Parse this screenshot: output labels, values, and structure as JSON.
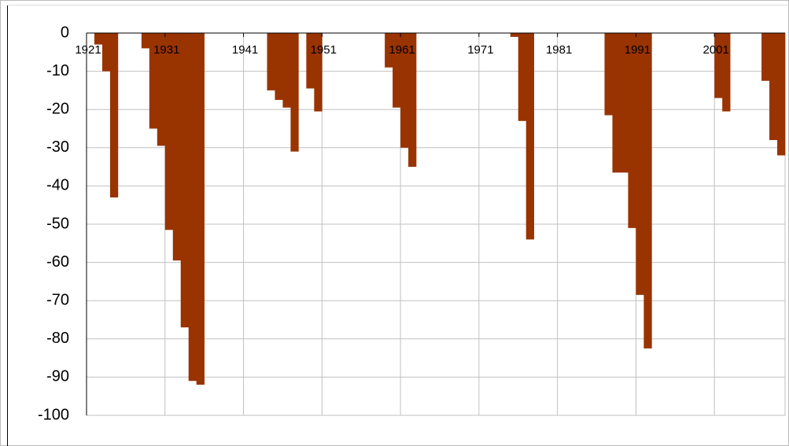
{
  "chart_data": {
    "type": "bar",
    "categories": [
      "1921",
      null,
      null,
      null,
      null,
      null,
      null,
      null,
      null,
      null,
      "1931",
      null,
      null,
      null,
      null,
      null,
      null,
      null,
      null,
      null,
      "1941",
      null,
      null,
      null,
      null,
      null,
      null,
      null,
      null,
      null,
      "1951",
      null,
      null,
      null,
      null,
      null,
      null,
      null,
      null,
      null,
      "1961",
      null,
      null,
      null,
      null,
      null,
      null,
      null,
      null,
      null,
      "1971",
      null,
      null,
      null,
      null,
      null,
      null,
      null,
      null,
      null,
      "1981",
      null,
      null,
      null,
      null,
      null,
      null,
      null,
      null,
      null,
      "1991",
      null,
      null,
      null,
      null,
      null,
      null,
      null,
      null,
      null,
      "2001",
      null,
      null,
      null,
      null,
      null,
      null,
      null,
      null
    ],
    "values": [
      0,
      -3,
      -10,
      -43,
      0,
      0,
      0,
      -4,
      -25,
      -29.5,
      -51.5,
      -59.5,
      -77,
      -91,
      -92,
      0,
      0,
      0,
      0,
      0,
      0,
      0,
      0,
      -15,
      -17.5,
      -19.5,
      -31,
      0,
      -14.5,
      -20.5,
      0,
      0,
      0,
      0,
      0,
      0,
      0,
      0,
      -9,
      -19.5,
      -30,
      -35,
      0,
      0,
      0,
      0,
      0,
      0,
      0,
      0,
      0,
      0,
      0,
      0,
      -1,
      -23,
      -54,
      0,
      0,
      0,
      0,
      0,
      0,
      0,
      0,
      0,
      -21.5,
      -36.5,
      -36.5,
      -51,
      -68.5,
      -82.5,
      0,
      0,
      0,
      0,
      0,
      0,
      0,
      0,
      -17,
      -20.5,
      0,
      0,
      0,
      0,
      -12.5,
      -28,
      -32
    ],
    "color": "#993300",
    "ylim": [
      -100,
      0
    ],
    "yticks": [
      0,
      -10,
      -20,
      -30,
      -40,
      -50,
      -60,
      -70,
      -80,
      -90,
      -100
    ],
    "grid": true
  }
}
